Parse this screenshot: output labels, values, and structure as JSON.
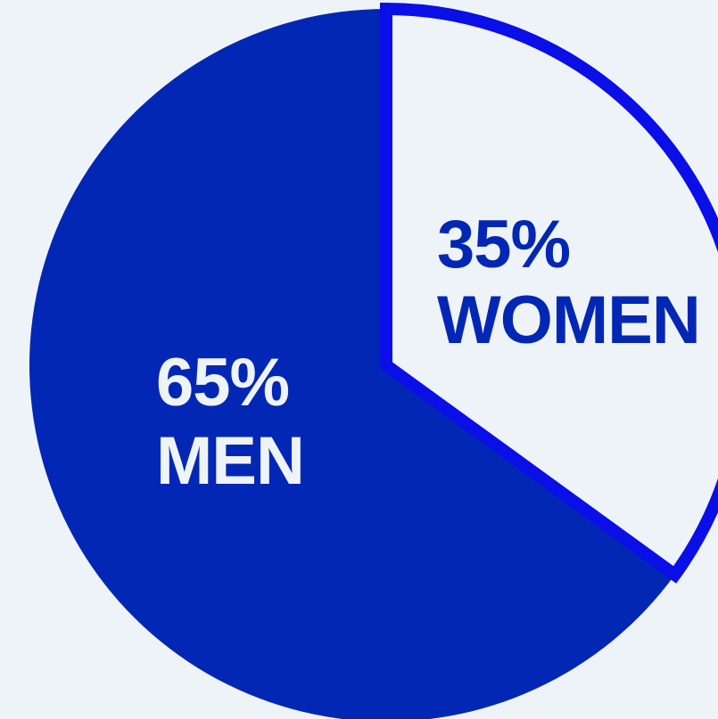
{
  "chart_data": {
    "type": "pie",
    "slices": [
      {
        "value_label": "65%",
        "name": "MEN",
        "value": 65,
        "color": "#0327B5",
        "text_color": "#EEF3F7",
        "outline_color": ""
      },
      {
        "value_label": "35%",
        "name": "WOMEN",
        "value": 35,
        "color": "#EEF3F7",
        "text_color": "#0327B5",
        "outline_color": "#0A0FE8"
      }
    ]
  }
}
